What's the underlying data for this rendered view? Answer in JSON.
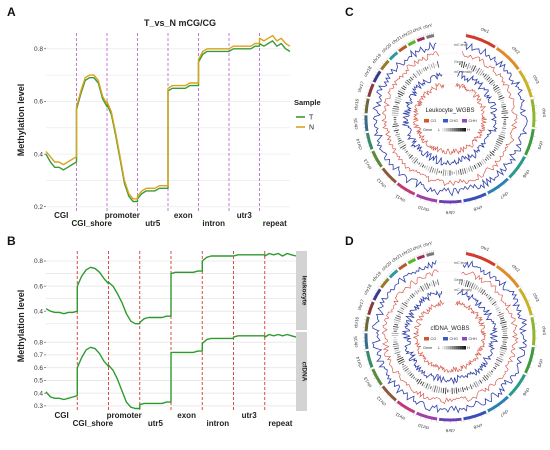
{
  "panels": {
    "A": {
      "label": "A",
      "title": "T_vs_N mCG/CG",
      "ylabel": "Methylation level",
      "yticks": [
        "0.2",
        "0.4",
        "0.6",
        "0.8"
      ],
      "legend_title": "Sample",
      "legend": [
        {
          "name": "T",
          "color": "#3a9a3a"
        },
        {
          "name": "N",
          "color": "#d9a31a"
        }
      ]
    },
    "B": {
      "label": "B",
      "ylabel": "Methylation level",
      "facets": [
        {
          "strip": "leukocyte",
          "yticks": [
            "0.4",
            "0.6",
            "0.8"
          ]
        },
        {
          "strip": "cfDNA",
          "yticks": [
            "0.3",
            "0.4",
            "0.5",
            "0.6",
            "0.7",
            "0.8"
          ]
        }
      ]
    },
    "C": {
      "label": "C",
      "center_title": "Leukocyte_WGBS",
      "track_labels": [
        "mC level",
        "Gene",
        "mC density"
      ],
      "legend_gene": "Gene",
      "legend_cpg": [
        "CG",
        "CHG",
        "CHH"
      ],
      "legend_low": "L",
      "legend_high": "H"
    },
    "D": {
      "label": "D",
      "center_title": "cfDNA_WGBS",
      "track_labels": [
        "mC level",
        "Gene",
        "mC density"
      ],
      "legend_gene": "Gene",
      "legend_cpg": [
        "CG",
        "CHG",
        "CHH"
      ],
      "legend_low": "L",
      "legend_high": "H"
    }
  },
  "categories": [
    "CGI",
    "CGI_shore",
    "promoter",
    "utr5",
    "exon",
    "intron",
    "utr3",
    "repeat"
  ],
  "chromosomes": [
    "chr1",
    "chr2",
    "chr3",
    "chr4",
    "chr5",
    "chr6",
    "chr7",
    "chr8",
    "chr9",
    "chr10",
    "chr11",
    "chr12",
    "chr13",
    "chr14",
    "chr15",
    "chr16",
    "chr17",
    "chr18",
    "chr19",
    "chr20",
    "chr21",
    "chr22",
    "chrX",
    "chrY"
  ],
  "chart_data": [
    {
      "type": "line",
      "title": "T_vs_N mCG/CG",
      "ylabel": "Methylation level",
      "categories": [
        "CGI",
        "CGI_shore",
        "promoter",
        "utr5",
        "exon",
        "intron",
        "utr3",
        "repeat"
      ],
      "ylim": [
        0.18,
        0.86
      ],
      "series": [
        {
          "name": "T",
          "color": "#3a9a3a",
          "segments": [
            [
              0.4,
              0.37,
              0.35,
              0.35,
              0.34,
              0.35,
              0.36,
              0.37
            ],
            [
              0.57,
              0.63,
              0.68,
              0.69,
              0.69,
              0.67,
              0.61,
              0.58
            ],
            [
              0.59,
              0.55,
              0.47,
              0.38,
              0.29,
              0.24,
              0.22,
              0.22
            ],
            [
              0.23,
              0.25,
              0.26,
              0.26,
              0.26,
              0.27,
              0.27,
              0.27
            ],
            [
              0.64,
              0.65,
              0.65,
              0.65,
              0.65,
              0.66,
              0.66,
              0.66
            ],
            [
              0.75,
              0.78,
              0.79,
              0.79,
              0.79,
              0.79,
              0.79,
              0.79
            ],
            [
              0.79,
              0.8,
              0.8,
              0.8,
              0.8,
              0.8,
              0.81,
              0.81
            ],
            [
              0.82,
              0.81,
              0.82,
              0.83,
              0.81,
              0.82,
              0.8,
              0.79
            ]
          ]
        },
        {
          "name": "N",
          "color": "#d9a31a",
          "segments": [
            [
              0.41,
              0.39,
              0.37,
              0.37,
              0.36,
              0.37,
              0.38,
              0.39
            ],
            [
              0.58,
              0.64,
              0.69,
              0.7,
              0.7,
              0.68,
              0.62,
              0.59
            ],
            [
              0.6,
              0.56,
              0.48,
              0.39,
              0.3,
              0.25,
              0.23,
              0.23
            ],
            [
              0.24,
              0.26,
              0.27,
              0.27,
              0.27,
              0.28,
              0.28,
              0.28
            ],
            [
              0.65,
              0.66,
              0.66,
              0.66,
              0.66,
              0.67,
              0.67,
              0.67
            ],
            [
              0.76,
              0.79,
              0.8,
              0.8,
              0.8,
              0.8,
              0.8,
              0.8
            ],
            [
              0.8,
              0.81,
              0.81,
              0.81,
              0.81,
              0.81,
              0.82,
              0.82
            ],
            [
              0.84,
              0.83,
              0.84,
              0.85,
              0.83,
              0.84,
              0.82,
              0.81
            ]
          ]
        }
      ]
    },
    {
      "type": "line",
      "facet": "leukocyte",
      "ylabel": "Methylation level",
      "categories": [
        "CGI",
        "CGI_shore",
        "promoter",
        "utr5",
        "exon",
        "intron",
        "utr3",
        "repeat"
      ],
      "ylim": [
        0.25,
        0.88
      ],
      "series": [
        {
          "color": "#2e9a2e",
          "segments": [
            [
              0.42,
              0.4,
              0.39,
              0.39,
              0.38,
              0.39,
              0.39,
              0.4
            ],
            [
              0.6,
              0.68,
              0.73,
              0.75,
              0.74,
              0.71,
              0.66,
              0.62
            ],
            [
              0.63,
              0.6,
              0.54,
              0.47,
              0.38,
              0.32,
              0.3,
              0.3
            ],
            [
              0.31,
              0.34,
              0.35,
              0.35,
              0.35,
              0.35,
              0.36,
              0.36
            ],
            [
              0.7,
              0.71,
              0.71,
              0.71,
              0.71,
              0.71,
              0.72,
              0.72
            ],
            [
              0.8,
              0.83,
              0.84,
              0.84,
              0.84,
              0.84,
              0.84,
              0.84
            ],
            [
              0.84,
              0.85,
              0.85,
              0.85,
              0.85,
              0.85,
              0.85,
              0.85
            ],
            [
              0.84,
              0.86,
              0.85,
              0.86,
              0.84,
              0.86,
              0.85,
              0.84
            ]
          ]
        }
      ]
    },
    {
      "type": "line",
      "facet": "cfDNA",
      "ylabel": "Methylation level",
      "categories": [
        "CGI",
        "CGI_shore",
        "promoter",
        "utr5",
        "exon",
        "intron",
        "utr3",
        "repeat"
      ],
      "ylim": [
        0.26,
        0.88
      ],
      "series": [
        {
          "color": "#2e9a2e",
          "segments": [
            [
              0.41,
              0.37,
              0.36,
              0.36,
              0.35,
              0.36,
              0.37,
              0.38
            ],
            [
              0.6,
              0.68,
              0.74,
              0.76,
              0.75,
              0.71,
              0.65,
              0.61
            ],
            [
              0.62,
              0.58,
              0.51,
              0.42,
              0.33,
              0.29,
              0.28,
              0.28
            ],
            [
              0.31,
              0.32,
              0.32,
              0.32,
              0.32,
              0.32,
              0.33,
              0.33
            ],
            [
              0.72,
              0.72,
              0.72,
              0.72,
              0.72,
              0.72,
              0.73,
              0.73
            ],
            [
              0.79,
              0.82,
              0.83,
              0.83,
              0.83,
              0.83,
              0.83,
              0.83
            ],
            [
              0.84,
              0.85,
              0.85,
              0.85,
              0.85,
              0.85,
              0.85,
              0.85
            ],
            [
              0.84,
              0.86,
              0.85,
              0.86,
              0.85,
              0.86,
              0.85,
              0.84
            ]
          ]
        }
      ]
    }
  ]
}
